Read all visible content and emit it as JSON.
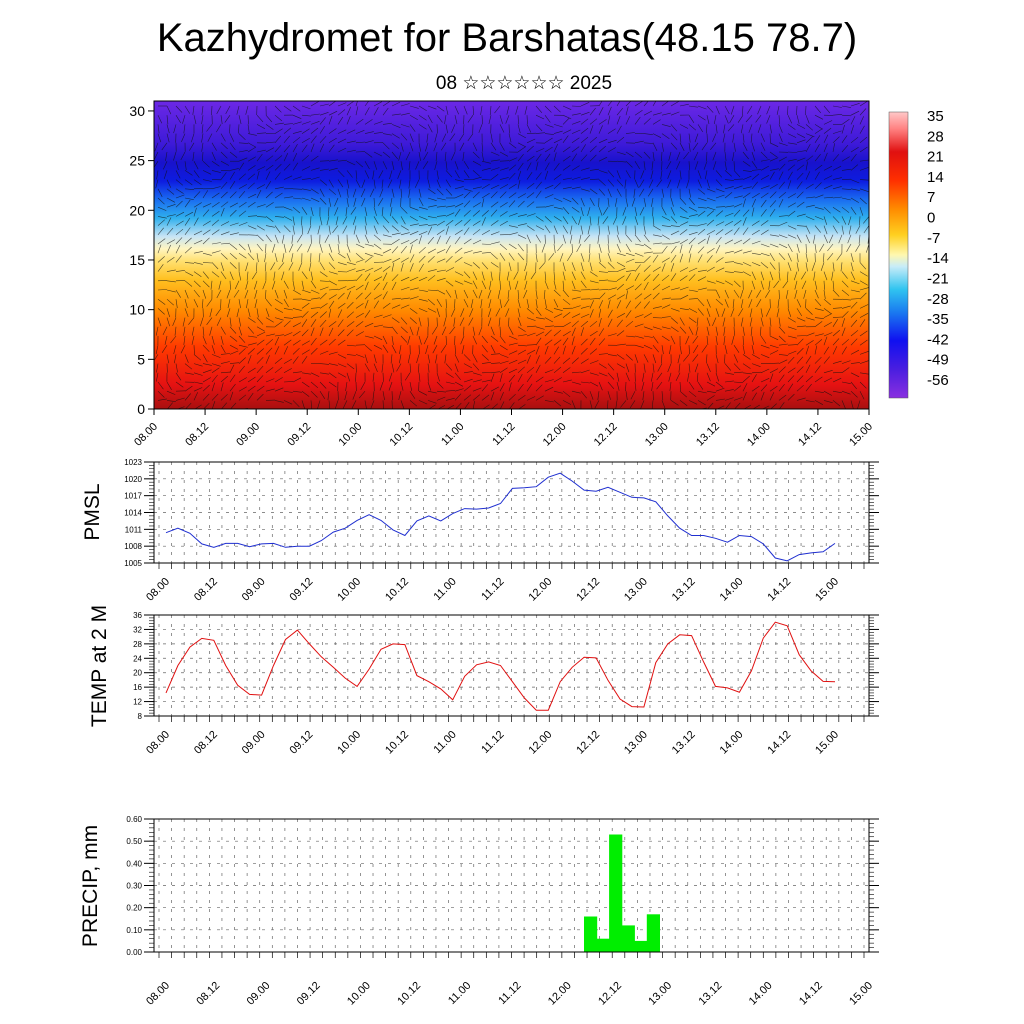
{
  "header": {
    "title": "Kazhydromet for Barshatas(48.15 78.7)",
    "subtitle": "08 ☆☆☆☆☆☆ 2025"
  },
  "colors": {
    "pmsl_line": "#1f2fd0",
    "temp_line": "#e01010",
    "precip_bar": "#00ee00"
  },
  "chart_data": [
    {
      "type": "heatmap",
      "title": "",
      "x_tick_labels": [
        "08.00",
        "08.12",
        "09.00",
        "09.12",
        "10.00",
        "10.12",
        "11.00",
        "11.12",
        "12.00",
        "12.12",
        "13.00",
        "13.12",
        "14.00",
        "14.12",
        "15.00"
      ],
      "y_tick_labels": [
        "0",
        "5",
        "10",
        "15",
        "20",
        "25",
        "30"
      ],
      "ylim": [
        0,
        31
      ],
      "colorbar_labels": [
        "35",
        "28",
        "21",
        "14",
        "7",
        "0",
        "-7",
        "-14",
        "-21",
        "-28",
        "-35",
        "-42",
        "-49",
        "-56"
      ],
      "overlay": "wind barbs"
    },
    {
      "type": "line",
      "ylabel": "PMSL",
      "ylim": [
        1005,
        1023
      ],
      "y_tick_labels": [
        "1005",
        "1008",
        "1011",
        "1014",
        "1017",
        "1020",
        "1023"
      ],
      "x_tick_labels": [
        "08.00",
        "08.12",
        "09.00",
        "09.12",
        "10.00",
        "10.12",
        "11.00",
        "11.12",
        "12.00",
        "12.12",
        "13.00",
        "13.12",
        "14.00",
        "14.12",
        "15.00"
      ],
      "values": [
        1010.4,
        1011.2,
        1010.3,
        1008.4,
        1007.8,
        1008.5,
        1008.5,
        1007.9,
        1008.4,
        1008.5,
        1007.8,
        1008.0,
        1008.0,
        1009.0,
        1010.5,
        1011.2,
        1012.6,
        1013.6,
        1012.6,
        1010.9,
        1009.9,
        1012.5,
        1013.4,
        1012.5,
        1013.8,
        1014.7,
        1014.6,
        1014.8,
        1015.6,
        1018.3,
        1018.4,
        1018.6,
        1020.3,
        1021.0,
        1019.6,
        1018.0,
        1017.8,
        1018.5,
        1017.6,
        1016.7,
        1016.6,
        1015.9,
        1013.4,
        1011.2,
        1009.9,
        1009.9,
        1009.4,
        1008.7,
        1009.9,
        1009.7,
        1008.4,
        1005.9,
        1005.4,
        1006.5,
        1006.8,
        1007.0,
        1008.5
      ]
    },
    {
      "type": "line",
      "ylabel": "TEMP at 2 M",
      "ylim": [
        8,
        36
      ],
      "y_tick_labels": [
        "8",
        "12",
        "16",
        "20",
        "24",
        "28",
        "32",
        "36"
      ],
      "x_tick_labels": [
        "08.00",
        "08.12",
        "09.00",
        "09.12",
        "10.00",
        "10.12",
        "11.00",
        "11.12",
        "12.00",
        "12.12",
        "13.00",
        "13.12",
        "14.00",
        "14.12",
        "15.00"
      ],
      "values": [
        14.4,
        22.0,
        27.1,
        29.5,
        29.0,
        22.0,
        16.5,
        14.0,
        13.8,
        22.0,
        29.2,
        31.8,
        28.0,
        24.4,
        21.5,
        18.5,
        16.2,
        21.0,
        26.5,
        28.0,
        27.8,
        19.2,
        17.5,
        15.5,
        12.5,
        19.0,
        22.2,
        23.0,
        22.0,
        17.5,
        13.0,
        9.6,
        9.6,
        17.5,
        21.5,
        24.3,
        24.1,
        17.9,
        12.7,
        10.6,
        10.5,
        22.8,
        28.0,
        30.5,
        30.3,
        23.0,
        16.2,
        15.8,
        14.6,
        20.5,
        29.6,
        34.0,
        33.0,
        25.0,
        20.5,
        17.6,
        17.5
      ]
    },
    {
      "type": "bar",
      "ylabel": "PRECIP, mm",
      "ylim": [
        0,
        0.6
      ],
      "y_tick_labels": [
        "0.00",
        "0.10",
        "0.20",
        "0.30",
        "0.40",
        "0.50",
        "0.60"
      ],
      "x_tick_labels": [
        "08.00",
        "08.12",
        "09.00",
        "09.12",
        "10.00",
        "10.12",
        "11.00",
        "11.12",
        "12.00",
        "12.12",
        "13.00",
        "13.12",
        "14.00",
        "14.12",
        "15.00"
      ],
      "bars": [
        {
          "start": 35,
          "value": 0.16
        },
        {
          "start": 36,
          "value": 0.06
        },
        {
          "start": 37,
          "value": 0.53
        },
        {
          "start": 38,
          "value": 0.12
        },
        {
          "start": 39,
          "value": 0.05
        },
        {
          "start": 40,
          "value": 0.17
        }
      ]
    }
  ]
}
